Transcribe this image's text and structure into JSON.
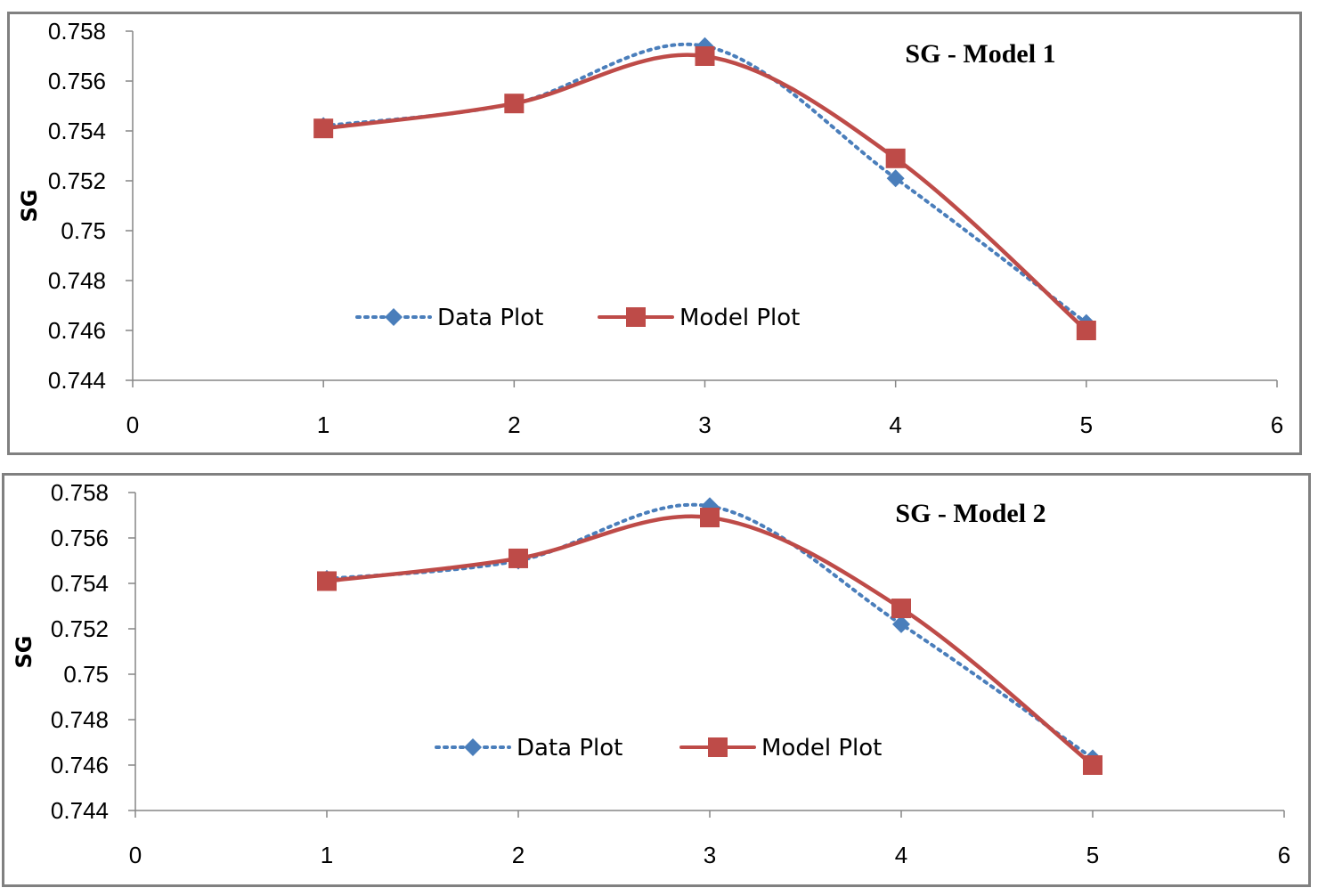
{
  "chart_data": [
    {
      "type": "line",
      "title": "SG - Model 1",
      "xlabel": "",
      "ylabel": "SG",
      "xlim": [
        0,
        6
      ],
      "ylim": [
        0.744,
        0.758
      ],
      "x_ticks": [
        "0",
        "1",
        "2",
        "3",
        "4",
        "5",
        "6"
      ],
      "y_ticks": [
        "0.744",
        "0.746",
        "0.748",
        "0.75",
        "0.752",
        "0.754",
        "0.756",
        "0.758"
      ],
      "grid": false,
      "legend_position": "bottom-left inside",
      "x": [
        1,
        2,
        3,
        4,
        5
      ],
      "series": [
        {
          "name": "Data Plot",
          "values": [
            0.7542,
            0.7551,
            0.7574,
            0.7521,
            0.7463
          ],
          "color": "#4a7ebb",
          "marker": "diamond",
          "line_style": "dotted"
        },
        {
          "name": "Model Plot",
          "values": [
            0.7541,
            0.7551,
            0.757,
            0.7529,
            0.746
          ],
          "color": "#be4b48",
          "marker": "square",
          "line_style": "solid"
        }
      ]
    },
    {
      "type": "line",
      "title": "SG - Model 2",
      "xlabel": "",
      "ylabel": "SG",
      "xlim": [
        0,
        6
      ],
      "ylim": [
        0.744,
        0.758
      ],
      "x_ticks": [
        "0",
        "1",
        "2",
        "3",
        "4",
        "5",
        "6"
      ],
      "y_ticks": [
        "0.744",
        "0.746",
        "0.748",
        "0.75",
        "0.752",
        "0.754",
        "0.756",
        "0.758"
      ],
      "grid": false,
      "legend_position": "bottom-center inside",
      "x": [
        1,
        2,
        3,
        4,
        5
      ],
      "series": [
        {
          "name": "Data Plot",
          "values": [
            0.7542,
            0.755,
            0.7574,
            0.7522,
            0.7463
          ],
          "color": "#4a7ebb",
          "marker": "diamond",
          "line_style": "dotted"
        },
        {
          "name": "Model Plot",
          "values": [
            0.7541,
            0.7551,
            0.7569,
            0.7529,
            0.746
          ],
          "color": "#be4b48",
          "marker": "square",
          "line_style": "solid"
        }
      ]
    }
  ]
}
